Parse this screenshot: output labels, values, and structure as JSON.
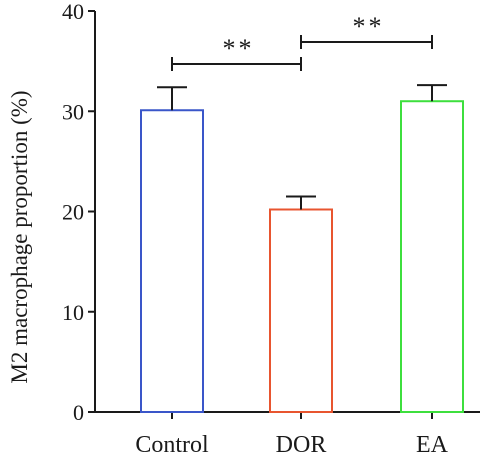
{
  "chart_data": {
    "type": "bar",
    "title": "",
    "xlabel": "",
    "ylabel": "M2 macrophage proportion (%)",
    "ylim": [
      0,
      40
    ],
    "yticks": [
      0,
      10,
      20,
      30,
      40
    ],
    "categories": [
      "Control",
      "DOR",
      "EA"
    ],
    "values": [
      30.1,
      20.2,
      31.0
    ],
    "errors": [
      2.3,
      1.3,
      1.6
    ],
    "colors": [
      "#3a56c9",
      "#e8552f",
      "#3ddf3d"
    ],
    "grid": false,
    "legend": "none",
    "significance": [
      {
        "from": "Control",
        "to": "DOR",
        "label": "**"
      },
      {
        "from": "DOR",
        "to": "EA",
        "label": "**"
      }
    ]
  }
}
